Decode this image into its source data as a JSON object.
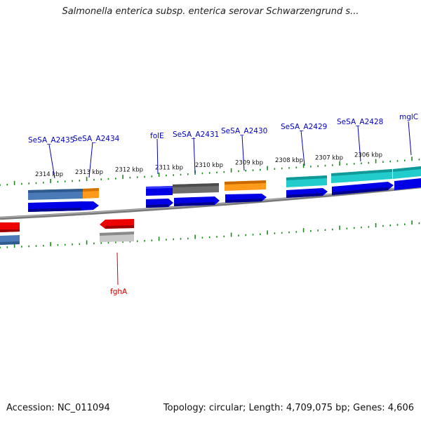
{
  "title": "Salmonella enterica subsp. enterica serovar Schwarzengrund s...",
  "footer": {
    "accession": "Accession: NC_011094",
    "topology": "Topology: circular; Length: 4,709,075 bp; Genes: 4,606"
  },
  "colors": {
    "tick": "#1a8a1a",
    "backbone": "#808080",
    "cds": "#0000e6",
    "label_forward": "#0000c0",
    "label_reverse": "#d40000"
  },
  "ticks": [
    {
      "label": "2314 kbp",
      "x": 2314
    },
    {
      "label": "2313 kbp",
      "x": 2313
    },
    {
      "label": "2312 kbp",
      "x": 2312
    },
    {
      "label": "2311 kbp",
      "x": 2311
    },
    {
      "label": "2310 kbp",
      "x": 2310
    },
    {
      "label": "2309 kbp",
      "x": 2309
    },
    {
      "label": "2308 kbp",
      "x": 2308
    },
    {
      "label": "2307 kbp",
      "x": 2307
    },
    {
      "label": "2306 kbp",
      "x": 2306
    }
  ],
  "genes": [
    {
      "label": "SeSA_A2435",
      "strand": "+"
    },
    {
      "label": "SeSA_A2434",
      "strand": "+"
    },
    {
      "label": "folE",
      "strand": "+"
    },
    {
      "label": "SeSA_A2431",
      "strand": "+"
    },
    {
      "label": "SeSA_A2430",
      "strand": "+"
    },
    {
      "label": "SeSA_A2429",
      "strand": "+"
    },
    {
      "label": "SeSA_A2428",
      "strand": "+"
    },
    {
      "label": "mglC",
      "strand": "+"
    },
    {
      "label": "fghA",
      "strand": "-"
    }
  ]
}
